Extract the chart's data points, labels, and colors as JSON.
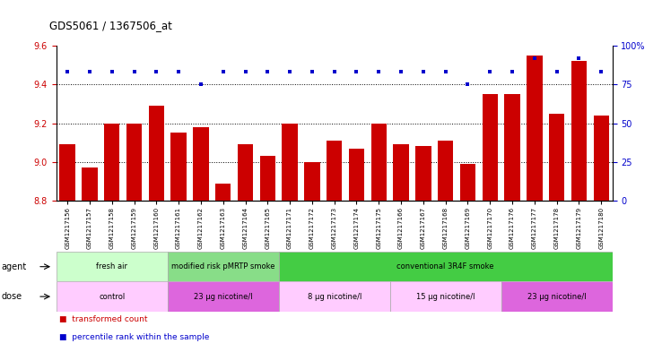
{
  "title": "GDS5061 / 1367506_at",
  "samples": [
    "GSM1217156",
    "GSM1217157",
    "GSM1217158",
    "GSM1217159",
    "GSM1217160",
    "GSM1217161",
    "GSM1217162",
    "GSM1217163",
    "GSM1217164",
    "GSM1217165",
    "GSM1217171",
    "GSM1217172",
    "GSM1217173",
    "GSM1217174",
    "GSM1217175",
    "GSM1217166",
    "GSM1217167",
    "GSM1217168",
    "GSM1217169",
    "GSM1217170",
    "GSM1217176",
    "GSM1217177",
    "GSM1217178",
    "GSM1217179",
    "GSM1217180"
  ],
  "bar_values": [
    9.09,
    8.97,
    9.2,
    9.2,
    9.29,
    9.15,
    9.18,
    8.89,
    9.09,
    9.03,
    9.2,
    9.0,
    9.11,
    9.07,
    9.2,
    9.09,
    9.08,
    9.11,
    8.99,
    9.35,
    9.35,
    9.55,
    9.25,
    9.52,
    9.24
  ],
  "percentile_values": [
    83,
    83,
    83,
    83,
    83,
    83,
    75,
    83,
    83,
    83,
    83,
    83,
    83,
    83,
    83,
    83,
    83,
    83,
    75,
    83,
    83,
    92,
    83,
    92,
    83
  ],
  "bar_color": "#cc0000",
  "dot_color": "#0000cc",
  "ylim": [
    8.8,
    9.6
  ],
  "y_ticks": [
    8.8,
    9.0,
    9.2,
    9.4,
    9.6
  ],
  "right_yticks": [
    0,
    25,
    50,
    75,
    100
  ],
  "right_ytick_labels": [
    "0",
    "25",
    "50",
    "75",
    "100%"
  ],
  "dotted_lines": [
    9.0,
    9.2,
    9.4
  ],
  "agent_groups": [
    {
      "label": "fresh air",
      "start": 0,
      "end": 5,
      "color": "#ccffcc"
    },
    {
      "label": "modified risk pMRTP smoke",
      "start": 5,
      "end": 10,
      "color": "#88dd88"
    },
    {
      "label": "conventional 3R4F smoke",
      "start": 10,
      "end": 25,
      "color": "#44cc44"
    }
  ],
  "dose_groups": [
    {
      "label": "control",
      "start": 0,
      "end": 5,
      "color": "#ffccff"
    },
    {
      "label": "23 μg nicotine/l",
      "start": 5,
      "end": 10,
      "color": "#dd66dd"
    },
    {
      "label": "8 μg nicotine/l",
      "start": 10,
      "end": 15,
      "color": "#ffccff"
    },
    {
      "label": "15 μg nicotine/l",
      "start": 15,
      "end": 20,
      "color": "#ffccff"
    },
    {
      "label": "23 μg nicotine/l",
      "start": 20,
      "end": 25,
      "color": "#dd66dd"
    }
  ],
  "legend_items": [
    {
      "label": "transformed count",
      "color": "#cc0000"
    },
    {
      "label": "percentile rank within the sample",
      "color": "#0000cc"
    }
  ]
}
